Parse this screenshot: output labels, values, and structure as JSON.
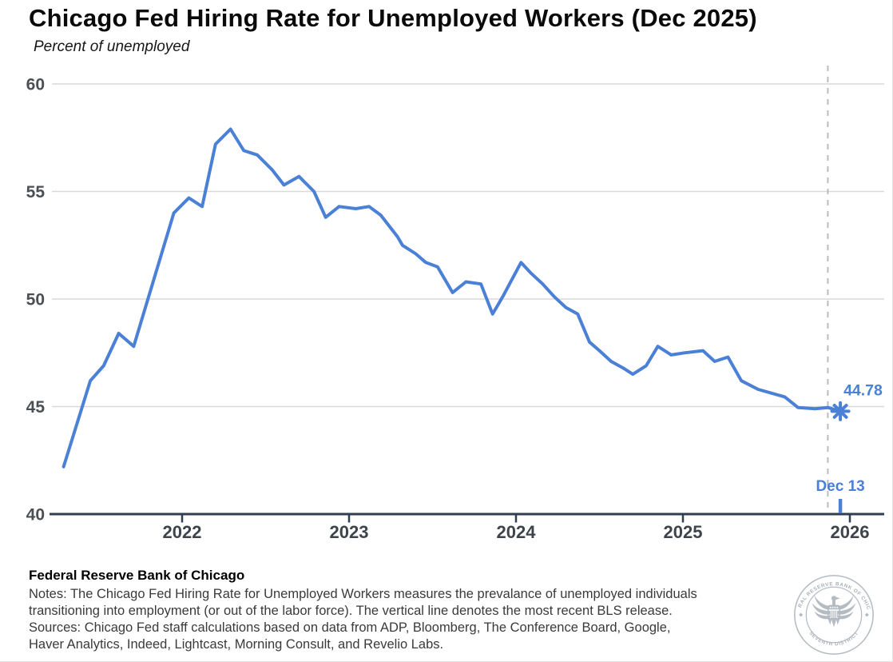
{
  "page": {
    "title": "Chicago Fed Hiring Rate for Unemployed Workers (Dec 2025)",
    "subtitle": "Percent of unemployed"
  },
  "chart_data": {
    "type": "line",
    "title": "Chicago Fed Hiring Rate for Unemployed Workers (Dec 2025)",
    "subtitle": "Percent of unemployed",
    "ylabel": "Percent of unemployed",
    "ylim": [
      40,
      60
    ],
    "yticks": [
      40,
      45,
      50,
      55,
      60
    ],
    "xticks": [
      2022,
      2023,
      2024,
      2025,
      2026
    ],
    "grid": "horizontal",
    "legend": "none",
    "series": [
      {
        "name": "Hiring rate for unemployed workers",
        "x": [
          2021.29,
          2021.45,
          2021.53,
          2021.62,
          2021.71,
          2021.95,
          2022.04,
          2022.12,
          2022.2,
          2022.29,
          2022.37,
          2022.45,
          2022.54,
          2022.61,
          2022.7,
          2022.79,
          2022.86,
          2022.94,
          2023.04,
          2023.12,
          2023.19,
          2023.29,
          2023.32,
          2023.4,
          2023.46,
          2023.53,
          2023.62,
          2023.7,
          2023.79,
          2023.86,
          2023.92,
          2024.03,
          2024.09,
          2024.16,
          2024.23,
          2024.3,
          2024.37,
          2024.44,
          2024.5,
          2024.57,
          2024.64,
          2024.7,
          2024.78,
          2024.85,
          2024.93,
          2025.01,
          2025.12,
          2025.19,
          2025.27,
          2025.35,
          2025.45,
          2025.61,
          2025.69,
          2025.79,
          2025.87,
          2025.94
        ],
        "y": [
          42.2,
          46.2,
          46.9,
          48.4,
          47.8,
          54.0,
          54.7,
          54.3,
          57.2,
          57.9,
          56.9,
          56.7,
          56.0,
          55.3,
          55.7,
          55.0,
          53.8,
          54.3,
          54.2,
          54.3,
          53.9,
          52.9,
          52.5,
          52.1,
          51.7,
          51.5,
          50.3,
          50.8,
          50.7,
          49.3,
          50.1,
          51.7,
          51.2,
          50.7,
          50.1,
          49.6,
          49.3,
          48.0,
          47.6,
          47.1,
          46.8,
          46.5,
          46.9,
          47.8,
          47.4,
          47.5,
          47.6,
          47.1,
          47.3,
          46.2,
          45.8,
          45.45,
          44.95,
          44.9,
          44.95,
          44.78
        ]
      }
    ],
    "last_point": {
      "t": 2025.943,
      "value": 44.78,
      "value_label": "44.78",
      "date_label": "Dec 13"
    },
    "vline": {
      "t": 2025.868,
      "style": "dashed",
      "meaning": "most recent BLS release"
    }
  },
  "annotations": {
    "last_value": "44.78",
    "last_date": "Dec 13"
  },
  "footer": {
    "org": "Federal Reserve Bank of Chicago",
    "lines": [
      "Notes: The Chicago Fed Hiring Rate for Unemployed Workers measures the prevalance of unemployed individuals",
      "transitioning into employment (or out of the labor force). The vertical line denotes the most recent BLS release.",
      "Sources: Chicago Fed staff calculations based on data from ADP, Bloomberg, The Conference Board, Google,",
      "Haver Analytics, Indeed, Lightcast, Morning Consult, and Revelio Labs."
    ]
  },
  "logo": {
    "ring_text_top": "FEDERAL RESERVE BANK OF CHICAGO",
    "ring_text_bottom": "SEVENTH DISTRICT"
  },
  "colors": {
    "line": "#4a80d6",
    "annotation": "#4a80d6",
    "axis": "#2e3f52",
    "gridline": "#d9d9d9",
    "dashed_line": "#bcbcbc",
    "y_label": "#4b5055",
    "x_label": "#3e444b",
    "seal_gray": "#b4bbc2"
  }
}
